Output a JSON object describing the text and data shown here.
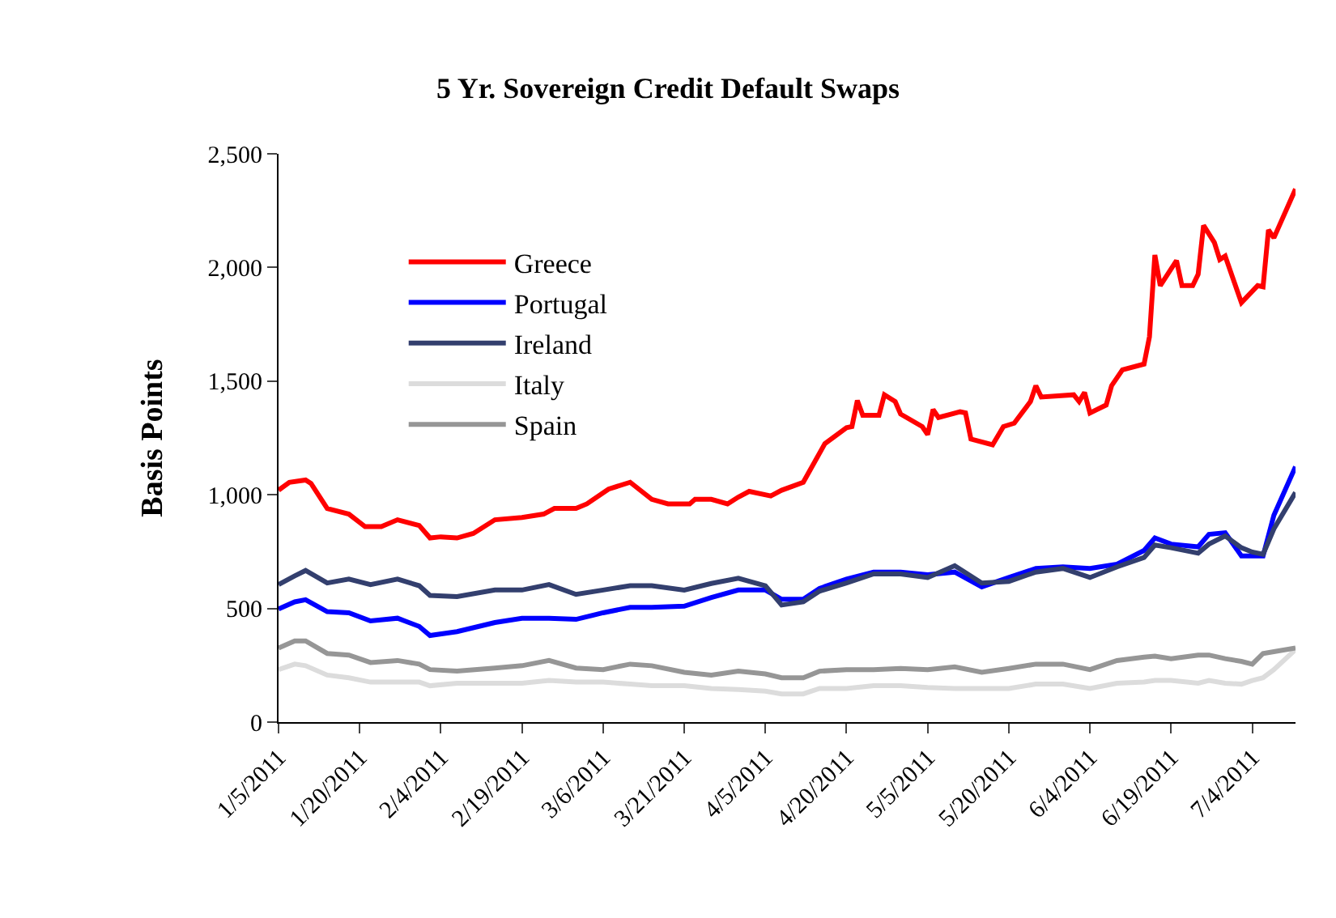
{
  "chart_data": {
    "type": "line",
    "title": "5 Yr. Sovereign Credit Default Swaps",
    "ylabel": "Basis Points",
    "x": [
      "2011-01-05",
      "2011-01-08",
      "2011-01-10",
      "2011-01-14",
      "2011-01-18",
      "2011-01-22",
      "2011-01-27",
      "2011-01-31",
      "2011-02-02",
      "2011-02-07",
      "2011-02-14",
      "2011-02-19",
      "2011-02-24",
      "2011-03-01",
      "2011-03-06",
      "2011-03-11",
      "2011-03-15",
      "2011-03-21",
      "2011-03-26",
      "2011-03-31",
      "2011-04-05",
      "2011-04-08",
      "2011-04-12",
      "2011-04-15",
      "2011-04-20",
      "2011-04-25",
      "2011-04-30",
      "2011-05-05",
      "2011-05-10",
      "2011-05-15",
      "2011-05-20",
      "2011-05-25",
      "2011-05-30",
      "2011-06-04",
      "2011-06-09",
      "2011-06-14",
      "2011-06-16",
      "2011-06-19",
      "2011-06-24",
      "2011-06-26",
      "2011-06-29",
      "2011-07-02",
      "2011-07-04",
      "2011-07-06",
      "2011-07-08",
      "2011-07-12"
    ],
    "series": [
      {
        "name": "Greece",
        "color": "#ff0000",
        "x": [
          "2011-01-05",
          "2011-01-07",
          "2011-01-10",
          "2011-01-11",
          "2011-01-14",
          "2011-01-18",
          "2011-01-21",
          "2011-01-24",
          "2011-01-27",
          "2011-01-31",
          "2011-02-02",
          "2011-02-04",
          "2011-02-07",
          "2011-02-10",
          "2011-02-14",
          "2011-02-19",
          "2011-02-23",
          "2011-02-25",
          "2011-03-01",
          "2011-03-03",
          "2011-03-07",
          "2011-03-11",
          "2011-03-15",
          "2011-03-18",
          "2011-03-22",
          "2011-03-23",
          "2011-03-26",
          "2011-03-29",
          "2011-03-31",
          "2011-04-02",
          "2011-04-06",
          "2011-04-08",
          "2011-04-12",
          "2011-04-16",
          "2011-04-20",
          "2011-04-21",
          "2011-04-22",
          "2011-04-23",
          "2011-04-26",
          "2011-04-27",
          "2011-04-29",
          "2011-04-30",
          "2011-05-04",
          "2011-05-05",
          "2011-05-06",
          "2011-05-07",
          "2011-05-11",
          "2011-05-12",
          "2011-05-13",
          "2011-05-17",
          "2011-05-19",
          "2011-05-21",
          "2011-05-24",
          "2011-05-25",
          "2011-05-26",
          "2011-06-01",
          "2011-06-02",
          "2011-06-03",
          "2011-06-04",
          "2011-06-07",
          "2011-06-08",
          "2011-06-10",
          "2011-06-14",
          "2011-06-15",
          "2011-06-16",
          "2011-06-17",
          "2011-06-20",
          "2011-06-21",
          "2011-06-23",
          "2011-06-24",
          "2011-06-25",
          "2011-06-27",
          "2011-06-28",
          "2011-06-29",
          "2011-07-02",
          "2011-07-05",
          "2011-07-06",
          "2011-07-07",
          "2011-07-08",
          "2011-07-12"
        ],
        "values": [
          1020,
          1055,
          1065,
          1050,
          940,
          915,
          860,
          860,
          890,
          865,
          810,
          815,
          810,
          830,
          890,
          900,
          915,
          940,
          940,
          960,
          1025,
          1055,
          980,
          960,
          960,
          980,
          980,
          960,
          990,
          1015,
          995,
          1020,
          1055,
          1225,
          1295,
          1300,
          1415,
          1350,
          1350,
          1440,
          1410,
          1355,
          1300,
          1265,
          1375,
          1340,
          1365,
          1360,
          1245,
          1220,
          1300,
          1315,
          1410,
          1480,
          1430,
          1440,
          1410,
          1450,
          1360,
          1395,
          1480,
          1550,
          1575,
          1695,
          2055,
          1920,
          2030,
          1920,
          1920,
          1970,
          2185,
          2110,
          2035,
          2050,
          1845,
          1920,
          1915,
          2165,
          2130,
          2345
        ]
      },
      {
        "name": "Portugal",
        "color": "#0000ff",
        "values": [
          498,
          529,
          538,
          486,
          481,
          445,
          457,
          421,
          381,
          398,
          438,
          457,
          457,
          452,
          481,
          505,
          505,
          510,
          548,
          581,
          581,
          540,
          540,
          588,
          629,
          660,
          660,
          648,
          660,
          595,
          636,
          676,
          683,
          676,
          695,
          755,
          810,
          783,
          771,
          826,
          833,
          731,
          731,
          731,
          910,
          1124
        ]
      },
      {
        "name": "Ireland",
        "color": "#333f6e",
        "values": [
          605,
          643,
          667,
          612,
          629,
          605,
          629,
          600,
          557,
          552,
          581,
          581,
          605,
          562,
          581,
          600,
          600,
          581,
          610,
          633,
          600,
          515,
          529,
          576,
          612,
          652,
          652,
          636,
          688,
          612,
          619,
          660,
          676,
          636,
          683,
          724,
          779,
          767,
          743,
          783,
          819,
          767,
          748,
          738,
          850,
          1010
        ]
      },
      {
        "name": "Italy",
        "color": "#dcdcdc",
        "values": [
          231,
          255,
          248,
          207,
          195,
          176,
          176,
          176,
          160,
          171,
          171,
          171,
          183,
          176,
          176,
          167,
          160,
          160,
          148,
          143,
          136,
          124,
          124,
          148,
          148,
          160,
          160,
          152,
          148,
          148,
          148,
          167,
          167,
          148,
          171,
          176,
          183,
          183,
          171,
          183,
          171,
          167,
          183,
          195,
          231,
          319
        ]
      },
      {
        "name": "Spain",
        "color": "#969696",
        "values": [
          326,
          357,
          357,
          302,
          295,
          262,
          271,
          255,
          231,
          224,
          238,
          248,
          271,
          238,
          231,
          255,
          248,
          219,
          207,
          224,
          212,
          195,
          195,
          224,
          231,
          231,
          236,
          231,
          243,
          219,
          236,
          255,
          255,
          231,
          271,
          286,
          290,
          279,
          295,
          295,
          279,
          267,
          255,
          302,
          310,
          326
        ]
      }
    ],
    "xlim": [
      "2011-01-05",
      "2011-07-12"
    ],
    "xticks": [
      {
        "value": "2011-01-05",
        "label": "1/5/2011"
      },
      {
        "value": "2011-01-20",
        "label": "1/20/2011"
      },
      {
        "value": "2011-02-04",
        "label": "2/4/2011"
      },
      {
        "value": "2011-02-19",
        "label": "2/19/2011"
      },
      {
        "value": "2011-03-06",
        "label": "3/6/2011"
      },
      {
        "value": "2011-03-21",
        "label": "3/21/2011"
      },
      {
        "value": "2011-04-05",
        "label": "4/5/2011"
      },
      {
        "value": "2011-04-20",
        "label": "4/20/2011"
      },
      {
        "value": "2011-05-05",
        "label": "5/5/2011"
      },
      {
        "value": "2011-05-20",
        "label": "5/20/2011"
      },
      {
        "value": "2011-06-04",
        "label": "6/4/2011"
      },
      {
        "value": "2011-06-19",
        "label": "6/19/2011"
      },
      {
        "value": "2011-07-04",
        "label": "7/4/2011"
      }
    ],
    "ylim": [
      0,
      2500
    ],
    "yticks": [
      0,
      {
        "value": 500,
        "label": "500"
      },
      {
        "value": 1000,
        "label": "1,000"
      },
      {
        "value": 1500,
        "label": "1,500"
      },
      {
        "value": 2000,
        "label": "2,000"
      },
      {
        "value": 2500,
        "label": "2,500"
      }
    ],
    "legend": "top left",
    "marker": "none",
    "line_style": "solid"
  }
}
